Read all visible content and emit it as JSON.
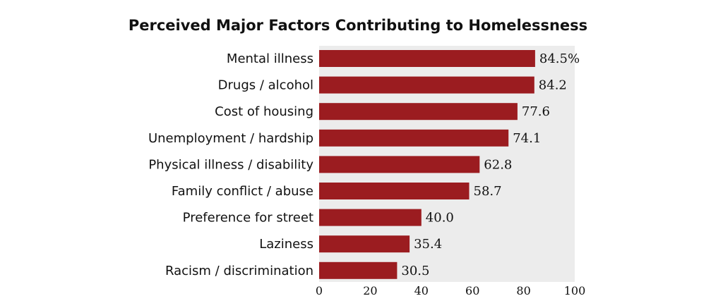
{
  "chart_data": {
    "type": "bar",
    "orientation": "horizontal",
    "title": "Perceived Major Factors Contributing to Homelessness",
    "categories": [
      "Mental illness",
      "Drugs / alcohol",
      "Cost of housing",
      "Unemployment / hardship",
      "Physical illness / disability",
      "Family conflict / abuse",
      "Preference for street",
      "Laziness",
      "Racism / discrimination"
    ],
    "values": [
      84.5,
      84.2,
      77.6,
      74.1,
      62.8,
      58.7,
      40.0,
      35.4,
      30.5
    ],
    "value_labels": [
      "84.5%",
      "84.2",
      "77.6",
      "74.1",
      "62.8",
      "58.7",
      "40.0",
      "35.4",
      "30.5"
    ],
    "xlim": [
      0,
      100
    ],
    "x_ticks": [
      "0",
      "20",
      "40",
      "60",
      "80",
      "100"
    ],
    "bar_color": "#9b1c20",
    "plot_background": "#ececec",
    "grid": false
  }
}
